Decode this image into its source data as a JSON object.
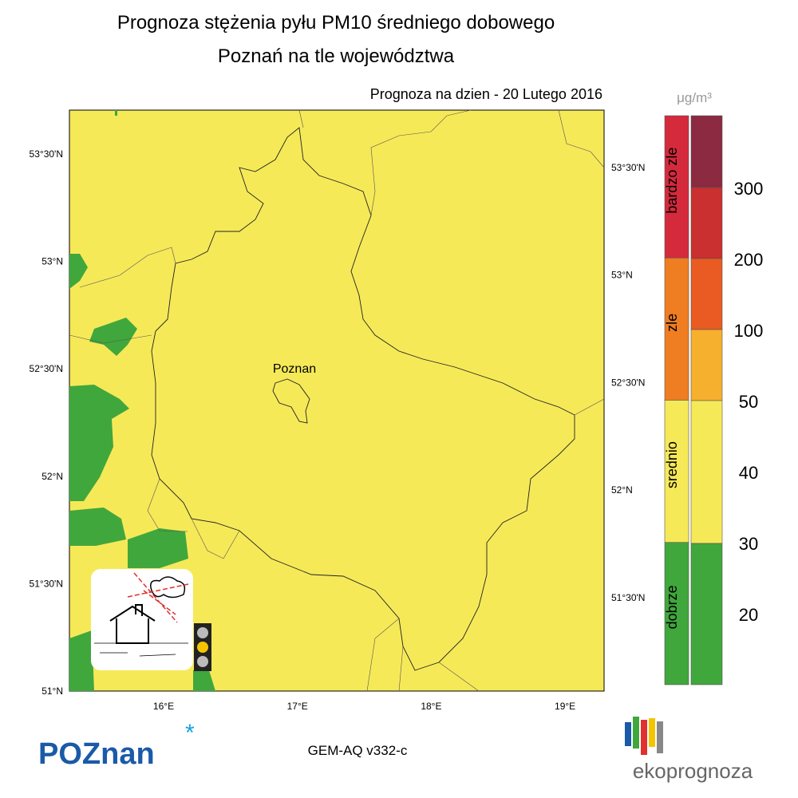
{
  "header": {
    "title": "Prognoza stężenia pyłu PM10 średniego dobowego",
    "subtitle": "Poznań na tle województwa",
    "date_line": "Prognoza na dzien -  20 Lutego 2016"
  },
  "map": {
    "city_label": "Poznan",
    "lat_labels_left": [
      "53°30'N",
      "53°N",
      "52°30'N",
      "52°N",
      "51°30'N",
      "51°N"
    ],
    "lat_labels_right": [
      "53°30'N",
      "53°N",
      "52°30'N",
      "52°N",
      "51°30'N"
    ],
    "lon_labels": [
      "16°E",
      "17°E",
      "18°E",
      "19°E"
    ]
  },
  "legend": {
    "unit": "μg/m³",
    "classes": [
      "bardzo zle",
      "zle",
      "srednio",
      "dobrze"
    ],
    "levels": [
      300,
      200,
      100,
      50,
      40,
      30,
      20
    ]
  },
  "footer": {
    "model": "GEM-AQ v332-c",
    "logo_left": "POZnan",
    "logo_right": "ekoprognoza"
  }
}
